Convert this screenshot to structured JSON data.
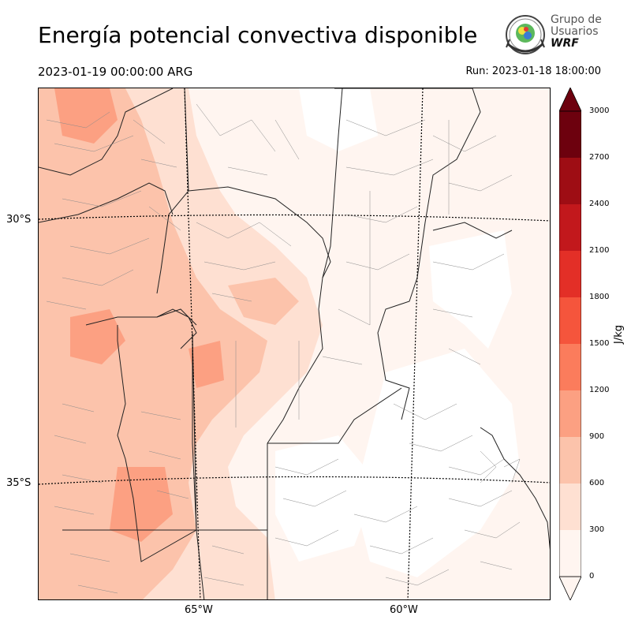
{
  "title": "Energía potencial convectiva disponible",
  "valid_time": "2023-01-19 00:00:00 ARG",
  "run_time": "Run: 2023-01-18 18:00:00",
  "logo": {
    "line1": "Grupo de",
    "line2": "Usuarios",
    "line3": "WRF",
    "seal_text": "UNIVERSIDAD"
  },
  "lat_labels": [
    "30°S",
    "35°S"
  ],
  "lon_labels": [
    "65°W",
    "60°W"
  ],
  "colorbar": {
    "unit": "J/kg",
    "ticks": [
      "0",
      "300",
      "600",
      "900",
      "1200",
      "1500",
      "1800",
      "2100",
      "2400",
      "2700",
      "3000"
    ],
    "colors": [
      "#fff5f0",
      "#fee0d2",
      "#fcc3ab",
      "#fca082",
      "#fb7c5c",
      "#f5553c",
      "#e32f27",
      "#c2181c",
      "#9e0d14",
      "#6d010e"
    ],
    "extend": "both"
  },
  "field": {
    "name": "CAPE",
    "unit": "J/kg",
    "pattern": "higher values (600–1500) in the western half, mostly below 300 in the east"
  }
}
